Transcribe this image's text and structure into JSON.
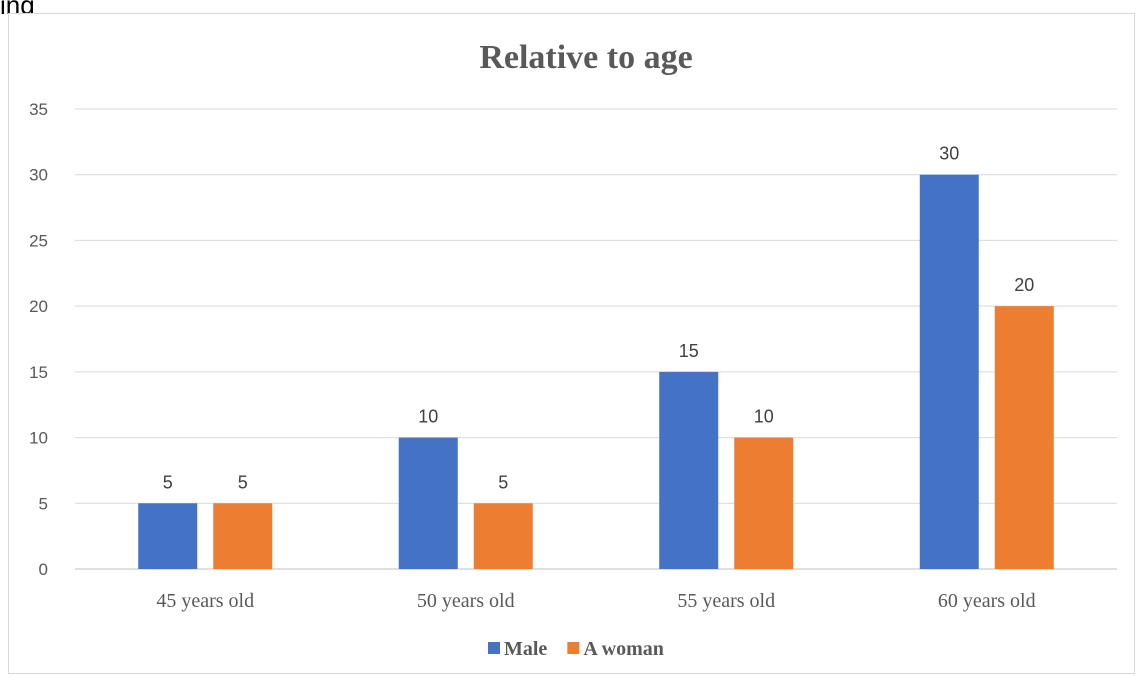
{
  "top_text": "ing",
  "chart_data": {
    "type": "bar",
    "title": "Relative to age",
    "categories": [
      "45 years old",
      "50 years old",
      "55 years old",
      "60 years old"
    ],
    "series": [
      {
        "name": "Male",
        "values": [
          5,
          10,
          15,
          30
        ],
        "color": "#4472c4"
      },
      {
        "name": "A woman",
        "values": [
          5,
          5,
          10,
          20
        ],
        "color": "#ed7d31"
      }
    ],
    "yticks": [
      0,
      5,
      10,
      15,
      20,
      25,
      30,
      35
    ],
    "ylim": [
      0,
      35
    ],
    "xlabel": "",
    "ylabel": "",
    "grid": true,
    "legend": "bottom",
    "data_labels": true
  }
}
